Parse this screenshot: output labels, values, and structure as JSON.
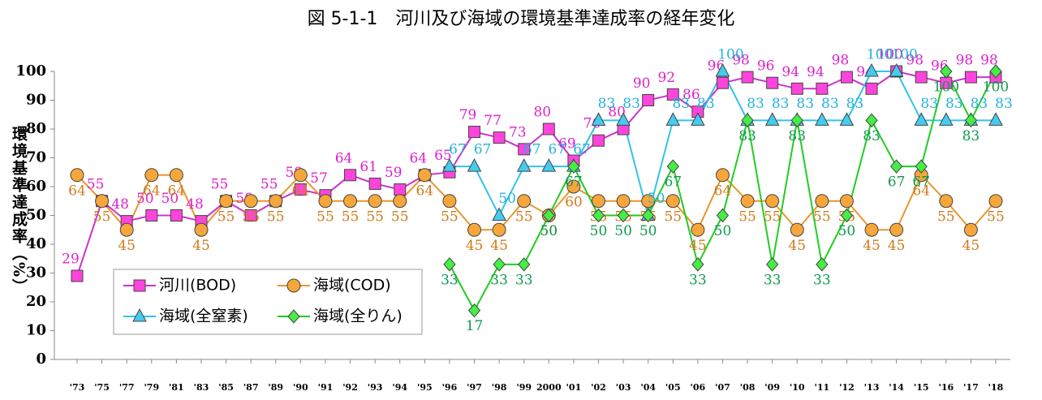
{
  "chart_data": {
    "type": "line",
    "title": "図 5-1-1　河川及び海域の環境基準達成率の経年変化",
    "y_label": "環境基準達成率（%）",
    "categories": [
      "'73",
      "'75",
      "'77",
      "'79",
      "'81",
      "'83",
      "'85",
      "'87",
      "'89",
      "'90",
      "'91",
      "'92",
      "'93",
      "'94",
      "'95",
      "'96",
      "'97",
      "'98",
      "'99",
      "2000",
      "'01",
      "'02",
      "'03",
      "'04",
      "'05",
      "'06",
      "'07",
      "'08",
      "'09",
      "'10",
      "'11",
      "'12",
      "'13",
      "'14",
      "'15",
      "'16",
      "'17",
      "'18"
    ],
    "ylim": [
      0,
      100
    ],
    "yticks": [
      0,
      10,
      20,
      30,
      40,
      50,
      60,
      70,
      80,
      90,
      100
    ],
    "grid": false,
    "legend": "lower left",
    "series": [
      {
        "name": "河川(BOD)",
        "color": "#cc33cc",
        "marker": "square",
        "values": [
          29,
          55,
          48,
          50,
          50,
          48,
          55,
          50,
          55,
          59,
          57,
          64,
          61,
          59,
          64,
          65,
          79,
          77,
          73,
          80,
          69,
          76,
          80,
          90,
          92,
          86,
          96,
          98,
          96,
          94,
          94,
          98,
          94,
          100,
          98,
          96,
          98,
          98
        ]
      },
      {
        "name": "海域(COD)",
        "color": "#e8962e",
        "marker": "circle",
        "values": [
          64,
          55,
          45,
          64,
          64,
          45,
          55,
          55,
          55,
          64,
          55,
          55,
          55,
          55,
          64,
          55,
          45,
          45,
          55,
          50,
          60,
          55,
          55,
          55,
          55,
          45,
          64,
          55,
          55,
          45,
          55,
          55,
          45,
          45,
          64,
          55,
          45,
          55
        ]
      },
      {
        "name": "海域(全窒素)",
        "color": "#33c3e8",
        "marker": "triangle",
        "values": [
          null,
          null,
          null,
          null,
          null,
          null,
          null,
          null,
          null,
          null,
          null,
          null,
          null,
          null,
          null,
          67,
          67,
          50,
          67,
          67,
          67,
          83,
          83,
          50,
          83,
          83,
          100,
          83,
          83,
          83,
          83,
          83,
          100,
          100,
          83,
          83,
          83,
          83
        ]
      },
      {
        "name": "海域(全りん)",
        "color": "#22cc22",
        "marker": "diamond",
        "values": [
          null,
          null,
          null,
          null,
          null,
          null,
          null,
          null,
          null,
          null,
          null,
          null,
          null,
          null,
          null,
          33,
          17,
          33,
          33,
          50,
          67,
          50,
          50,
          50,
          67,
          33,
          50,
          83,
          33,
          83,
          33,
          50,
          83,
          67,
          67,
          100,
          83,
          100
        ]
      }
    ]
  }
}
